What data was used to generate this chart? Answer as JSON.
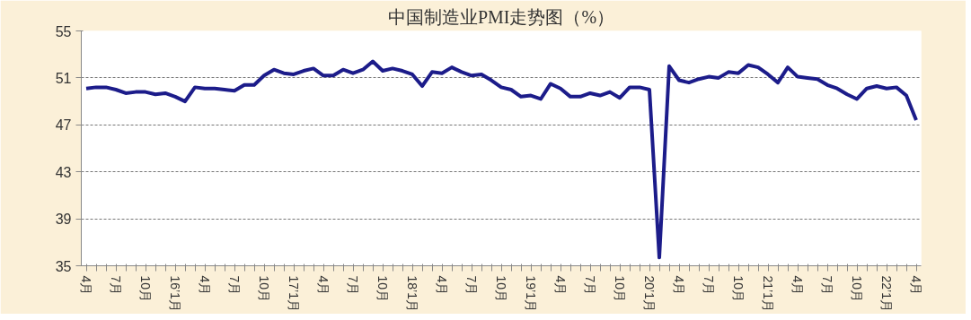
{
  "chart_data": {
    "type": "line",
    "title": "中国制造业PMI走势图（%）",
    "categories": [
      "4月",
      null,
      null,
      "7月",
      null,
      null,
      "10月",
      null,
      null,
      "16’1月",
      null,
      null,
      "4月",
      null,
      null,
      "7月",
      null,
      null,
      "10月",
      null,
      null,
      "17’1月",
      null,
      null,
      "4月",
      null,
      null,
      "7月",
      null,
      null,
      "10月",
      null,
      null,
      "18’1月",
      null,
      null,
      "4月",
      null,
      null,
      "7月",
      null,
      null,
      "10月",
      null,
      null,
      "19’1月",
      null,
      null,
      "4月",
      null,
      null,
      "7月",
      null,
      null,
      "10月",
      null,
      null,
      "20’1月",
      null,
      null,
      "4月",
      null,
      null,
      "7月",
      null,
      null,
      "10月",
      null,
      null,
      "21’1月",
      null,
      null,
      "4月",
      null,
      null,
      "7月",
      null,
      null,
      "10月",
      null,
      null,
      "22’1月",
      null,
      null,
      "4月"
    ],
    "series": [
      {
        "color": "#1c1c8a",
        "values": [
          50.1,
          50.2,
          50.2,
          50.0,
          49.7,
          49.8,
          49.8,
          49.6,
          49.7,
          49.4,
          49.0,
          50.2,
          50.1,
          50.1,
          50.0,
          49.9,
          50.4,
          50.4,
          51.2,
          51.7,
          51.4,
          51.3,
          51.6,
          51.8,
          51.2,
          51.2,
          51.7,
          51.4,
          51.7,
          52.4,
          51.6,
          51.8,
          51.6,
          51.3,
          50.3,
          51.5,
          51.4,
          51.9,
          51.5,
          51.2,
          51.3,
          50.8,
          50.2,
          50.0,
          49.4,
          49.5,
          49.2,
          50.5,
          50.1,
          49.4,
          49.4,
          49.7,
          49.5,
          49.8,
          49.3,
          50.2,
          50.2,
          50.0,
          35.7,
          52.0,
          50.8,
          50.6,
          50.9,
          51.1,
          51.0,
          51.5,
          51.4,
          52.1,
          51.9,
          51.3,
          50.6,
          51.9,
          51.1,
          51.0,
          50.9,
          50.4,
          50.1,
          49.6,
          49.2,
          50.1,
          50.3,
          50.1,
          50.2,
          49.5,
          47.4
        ]
      }
    ],
    "ylim": [
      35,
      55
    ],
    "yticks": [
      35,
      39,
      43,
      47,
      51,
      55
    ],
    "grid": "y",
    "line_style": "solid",
    "marker": "none"
  }
}
